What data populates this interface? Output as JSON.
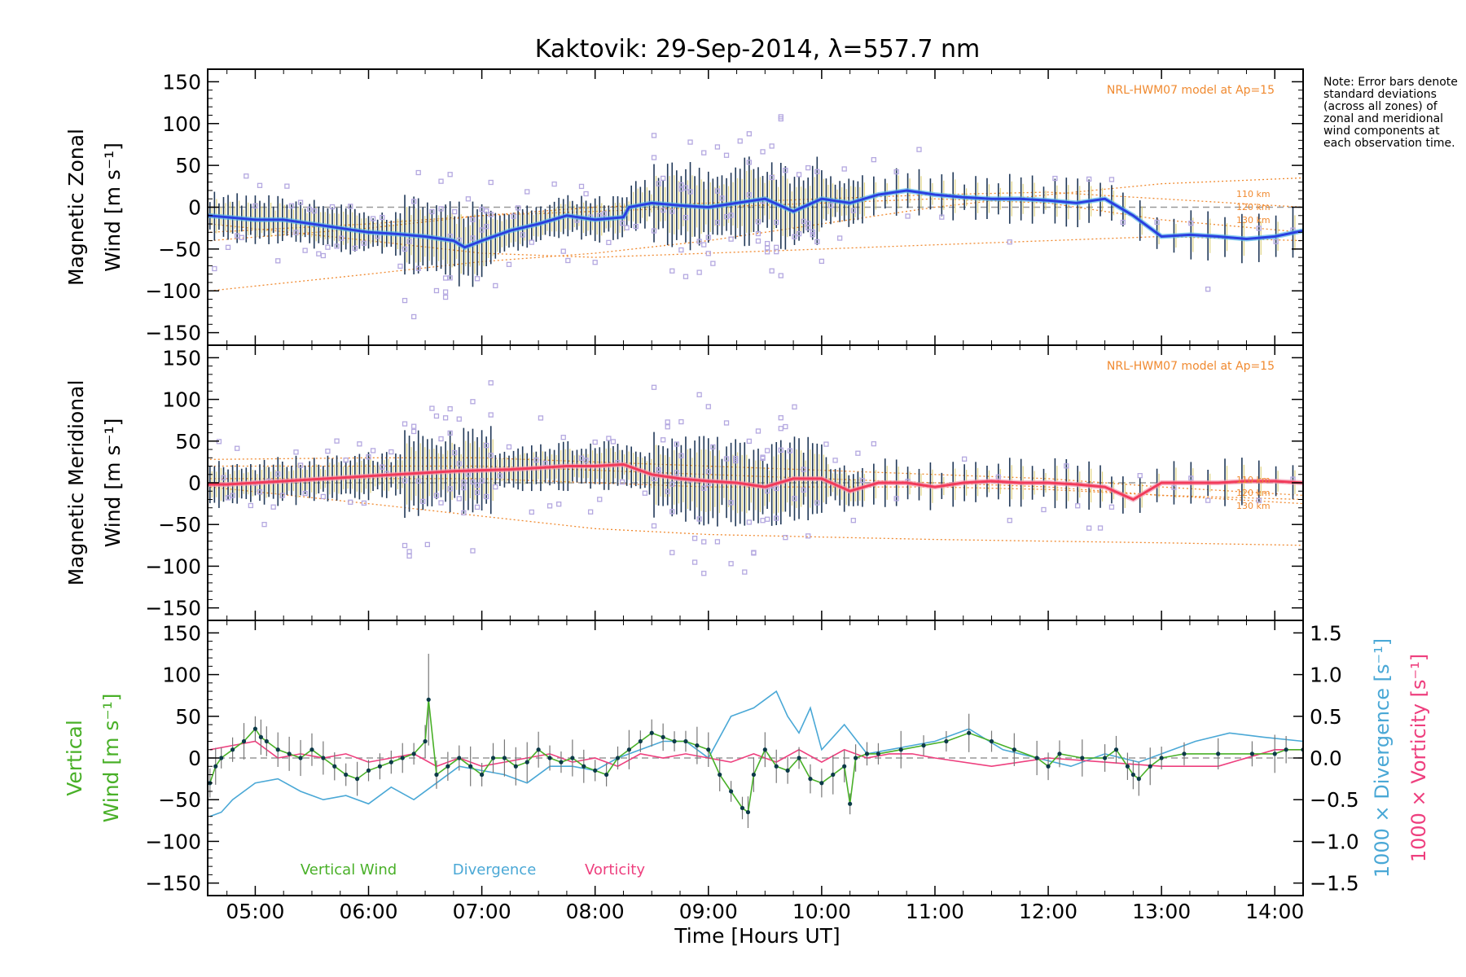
{
  "chart_data": {
    "title": "Kaktovik: 29-Sep-2014, λ=557.7 nm",
    "xlabel": "Time [Hours UT]",
    "x_range_hours": [
      4.58,
      14.25
    ],
    "x_ticks": [
      {
        "hour": 5,
        "label": "05:00"
      },
      {
        "hour": 6,
        "label": "06:00"
      },
      {
        "hour": 7,
        "label": "07:00"
      },
      {
        "hour": 8,
        "label": "08:00"
      },
      {
        "hour": 9,
        "label": "09:00"
      },
      {
        "hour": 10,
        "label": "10:00"
      },
      {
        "hour": 11,
        "label": "11:00"
      },
      {
        "hour": 12,
        "label": "12:00"
      },
      {
        "hour": 13,
        "label": "13:00"
      },
      {
        "hour": 14,
        "label": "14:00"
      }
    ],
    "note": "Note: Error bars denote standard deviations (across all zones) of zonal and meridional wind components at each observation time.",
    "colors": {
      "zonal": "#2a3fe0",
      "zonal_light": "#58b8e8",
      "meridional": "#f23a5a",
      "vertical": "#49b028",
      "divergence": "#4aa8d6",
      "vorticity": "#ee3f7e",
      "model": "#f08a30",
      "scatter": "#b4a8e0",
      "errbar": "#203858"
    },
    "panels": [
      {
        "type": "line",
        "ylabel_line1": "Magnetic Zonal",
        "ylabel_line2": "Wind [m s⁻¹]",
        "ylim": [
          -165,
          165
        ],
        "yticks": [
          "150",
          "100",
          "50",
          "0",
          "−50",
          "−100",
          "−150"
        ],
        "ytick_values": [
          150,
          100,
          50,
          0,
          -50,
          -100,
          -150
        ],
        "model_label": "NRL-HWM07 model at Ap=15",
        "model_alt_labels": [
          "110 km",
          "120 km",
          "130 km"
        ],
        "mean_series": {
          "name": "Zonal wind",
          "x": [
            4.58,
            4.75,
            5.0,
            5.25,
            5.5,
            5.75,
            6.0,
            6.25,
            6.5,
            6.75,
            6.85,
            7.0,
            7.25,
            7.5,
            7.75,
            8.0,
            8.25,
            8.3,
            8.5,
            8.75,
            9.0,
            9.25,
            9.5,
            9.75,
            10.0,
            10.25,
            10.5,
            10.75,
            11.0,
            11.25,
            11.5,
            11.75,
            12.0,
            12.25,
            12.5,
            12.75,
            13.0,
            13.25,
            13.5,
            13.75,
            14.0,
            14.25
          ],
          "values": [
            -10,
            -12,
            -15,
            -15,
            -20,
            -25,
            -30,
            -32,
            -35,
            -40,
            -48,
            -40,
            -28,
            -20,
            -10,
            -15,
            -12,
            0,
            5,
            2,
            0,
            5,
            10,
            -5,
            10,
            5,
            15,
            20,
            15,
            12,
            10,
            10,
            8,
            5,
            10,
            -10,
            -35,
            -33,
            -35,
            -38,
            -35,
            -28
          ]
        },
        "model_curves": [
          {
            "label": "110 km",
            "x": [
              4.6,
              6,
              7,
              8,
              9,
              10,
              11,
              12,
              13,
              14.25
            ],
            "values": [
              -100,
              -80,
              -65,
              -55,
              -40,
              -20,
              0,
              15,
              28,
              35
            ]
          },
          {
            "label": "120 km",
            "x": [
              4.6,
              6,
              7,
              8,
              9,
              10,
              11,
              12,
              13,
              14.25
            ],
            "values": [
              -40,
              -25,
              -10,
              0,
              5,
              10,
              15,
              18,
              10,
              0
            ]
          },
          {
            "label": "130 km",
            "x": [
              4.6,
              6,
              7,
              8,
              9,
              10,
              11,
              12,
              13,
              14.25
            ],
            "values": [
              -30,
              -20,
              -10,
              -5,
              0,
              5,
              10,
              5,
              -15,
              -30
            ]
          },
          {
            "label": "",
            "x": [
              4.6,
              6,
              7,
              8,
              9,
              10,
              11,
              12,
              13,
              14.25
            ],
            "values": [
              -20,
              -40,
              -55,
              -60,
              -55,
              -50,
              -45,
              -40,
              -35,
              -40
            ]
          }
        ]
      },
      {
        "type": "line",
        "ylabel_line1": "Magnetic Meridional",
        "ylabel_line2": "Wind [m s⁻¹]",
        "ylim": [
          -165,
          165
        ],
        "yticks": [
          "150",
          "100",
          "50",
          "0",
          "−50",
          "−100",
          "−150"
        ],
        "ytick_values": [
          150,
          100,
          50,
          0,
          -50,
          -100,
          -150
        ],
        "model_label": "NRL-HWM07 model at Ap=15",
        "model_alt_labels": [
          "110 km",
          "120 km",
          "130 km"
        ],
        "mean_series": {
          "name": "Meridional wind",
          "x": [
            4.58,
            4.75,
            5.0,
            5.25,
            5.5,
            5.75,
            6.0,
            6.25,
            6.5,
            6.75,
            7.0,
            7.25,
            7.5,
            7.75,
            8.0,
            8.25,
            8.5,
            8.75,
            9.0,
            9.25,
            9.5,
            9.75,
            10.0,
            10.25,
            10.5,
            10.75,
            11.0,
            11.25,
            11.5,
            11.75,
            12.0,
            12.25,
            12.5,
            12.75,
            13.0,
            13.25,
            13.5,
            13.75,
            14.0,
            14.25
          ],
          "values": [
            -2,
            -2,
            0,
            2,
            4,
            6,
            8,
            10,
            12,
            14,
            15,
            16,
            18,
            20,
            20,
            22,
            10,
            5,
            2,
            0,
            -5,
            5,
            5,
            -10,
            0,
            0,
            -5,
            0,
            2,
            0,
            0,
            -2,
            -5,
            -20,
            0,
            0,
            0,
            2,
            2,
            0
          ]
        },
        "model_curves": [
          {
            "label": "110 km",
            "x": [
              4.6,
              6,
              7,
              8,
              9,
              10,
              11,
              12,
              13,
              14.25
            ],
            "values": [
              -5,
              -25,
              -40,
              -55,
              -62,
              -65,
              -68,
              -70,
              -72,
              -75
            ]
          },
          {
            "label": "120 km",
            "x": [
              4.6,
              6,
              7,
              8,
              9,
              10,
              11,
              12,
              13,
              14.25
            ],
            "values": [
              28,
              30,
              30,
              25,
              20,
              15,
              10,
              5,
              -5,
              -15
            ]
          },
          {
            "label": "130 km",
            "x": [
              4.6,
              6,
              7,
              8,
              9,
              10,
              11,
              12,
              13,
              14.25
            ],
            "values": [
              20,
              20,
              20,
              15,
              10,
              5,
              0,
              -5,
              -15,
              -25
            ]
          },
          {
            "label": "",
            "x": [
              4.6,
              6,
              7,
              8,
              9,
              10,
              11,
              12,
              13,
              14.25
            ],
            "values": [
              5,
              5,
              5,
              0,
              -5,
              -5,
              -5,
              -8,
              -15,
              -20
            ]
          }
        ]
      },
      {
        "type": "line",
        "ylabel_vertical_line1": "Vertical",
        "ylabel_vertical_line2": "Wind [m s⁻¹]",
        "ylabel_right_div": "1000 × Divergence [s⁻¹]",
        "ylabel_right_vort": "1000 × Vorticity [s⁻¹]",
        "ylim": [
          -165,
          165
        ],
        "yticks": [
          "150",
          "100",
          "50",
          "0",
          "−50",
          "−100",
          "−150"
        ],
        "ytick_values": [
          150,
          100,
          50,
          0,
          -50,
          -100,
          -150
        ],
        "right_ylim": [
          -1.65,
          1.65
        ],
        "right_yticks": [
          "1.5",
          "1.0",
          "0.5",
          "0.0",
          "−0.5",
          "−1.0",
          "−1.5"
        ],
        "right_ytick_values": [
          1.5,
          1.0,
          0.5,
          0.0,
          -0.5,
          -1.0,
          -1.5
        ],
        "legend": [
          "Vertical Wind",
          "Divergence",
          "Vorticity"
        ],
        "series": [
          {
            "name": "Vertical Wind",
            "x": [
              4.6,
              4.65,
              4.7,
              4.8,
              4.9,
              5.0,
              5.05,
              5.1,
              5.2,
              5.3,
              5.4,
              5.5,
              5.6,
              5.7,
              5.8,
              5.9,
              6.0,
              6.1,
              6.2,
              6.3,
              6.4,
              6.5,
              6.53,
              6.6,
              6.7,
              6.8,
              6.9,
              7.0,
              7.1,
              7.2,
              7.3,
              7.4,
              7.5,
              7.6,
              7.7,
              7.8,
              7.9,
              8.0,
              8.1,
              8.2,
              8.3,
              8.4,
              8.5,
              8.6,
              8.7,
              8.8,
              8.9,
              9.0,
              9.1,
              9.2,
              9.3,
              9.35,
              9.4,
              9.5,
              9.6,
              9.7,
              9.8,
              9.9,
              10.0,
              10.1,
              10.2,
              10.25,
              10.3,
              10.4,
              10.5,
              10.7,
              10.9,
              11.1,
              11.3,
              11.5,
              11.7,
              11.9,
              12.0,
              12.1,
              12.3,
              12.5,
              12.6,
              12.7,
              12.75,
              12.8,
              12.9,
              13.0,
              13.2,
              13.5,
              13.8,
              14.0,
              14.1,
              14.25
            ],
            "values": [
              -30,
              -10,
              0,
              10,
              20,
              35,
              25,
              20,
              10,
              5,
              0,
              10,
              0,
              -10,
              -20,
              -25,
              -15,
              -10,
              -5,
              0,
              5,
              20,
              70,
              -20,
              -10,
              0,
              -10,
              -20,
              0,
              0,
              -10,
              -5,
              10,
              0,
              -5,
              0,
              -10,
              -15,
              -20,
              0,
              10,
              20,
              30,
              25,
              20,
              20,
              15,
              10,
              -20,
              -40,
              -60,
              -65,
              -20,
              10,
              -10,
              -15,
              0,
              -25,
              -30,
              -20,
              -10,
              -55,
              0,
              5,
              5,
              10,
              15,
              20,
              30,
              20,
              10,
              0,
              -10,
              5,
              0,
              0,
              10,
              -10,
              -20,
              -25,
              -10,
              0,
              5,
              5,
              5,
              5,
              10,
              10
            ]
          },
          {
            "name": "Divergence",
            "x": [
              4.6,
              4.7,
              4.8,
              5.0,
              5.2,
              5.4,
              5.6,
              5.8,
              6.0,
              6.2,
              6.4,
              6.6,
              6.8,
              7.0,
              7.2,
              7.4,
              7.6,
              7.8,
              8.0,
              8.2,
              8.4,
              8.6,
              8.8,
              9.0,
              9.2,
              9.4,
              9.5,
              9.6,
              9.7,
              9.8,
              9.9,
              10.0,
              10.2,
              10.4,
              10.6,
              10.8,
              11.0,
              11.3,
              11.6,
              11.9,
              12.2,
              12.5,
              12.8,
              13.0,
              13.3,
              13.6,
              13.9,
              14.25
            ],
            "values": [
              -0.7,
              -0.65,
              -0.5,
              -0.3,
              -0.25,
              -0.4,
              -0.5,
              -0.45,
              -0.55,
              -0.35,
              -0.5,
              -0.3,
              -0.1,
              -0.15,
              -0.2,
              -0.3,
              -0.1,
              -0.1,
              -0.15,
              0.0,
              0.1,
              0.2,
              0.2,
              0.0,
              0.5,
              0.6,
              0.7,
              0.8,
              0.5,
              0.3,
              0.6,
              0.1,
              0.4,
              0.05,
              0.1,
              0.15,
              0.2,
              0.35,
              0.1,
              0.0,
              -0.1,
              0.05,
              -0.05,
              0.05,
              0.2,
              0.3,
              0.25,
              0.2
            ]
          },
          {
            "name": "Vorticity",
            "x": [
              4.6,
              4.8,
              5.0,
              5.2,
              5.4,
              5.6,
              5.8,
              6.0,
              6.2,
              6.4,
              6.6,
              6.8,
              7.0,
              7.2,
              7.4,
              7.6,
              7.8,
              8.0,
              8.2,
              8.4,
              8.6,
              8.8,
              9.0,
              9.2,
              9.4,
              9.6,
              9.8,
              10.0,
              10.2,
              10.4,
              10.6,
              10.8,
              11.0,
              11.5,
              12.0,
              12.5,
              13.0,
              13.5,
              14.0,
              14.25
            ],
            "values": [
              0.1,
              0.15,
              0.2,
              0.0,
              0.05,
              0.0,
              0.05,
              -0.05,
              0.0,
              0.05,
              -0.1,
              0.0,
              -0.1,
              -0.05,
              0.0,
              0.05,
              -0.05,
              0.0,
              -0.1,
              0.05,
              0.0,
              0.05,
              0.0,
              -0.05,
              0.05,
              -0.05,
              0.1,
              -0.05,
              0.1,
              0.0,
              0.05,
              0.05,
              0.0,
              -0.1,
              0.0,
              -0.05,
              -0.1,
              -0.1,
              0.1,
              0.1
            ]
          }
        ]
      }
    ]
  }
}
